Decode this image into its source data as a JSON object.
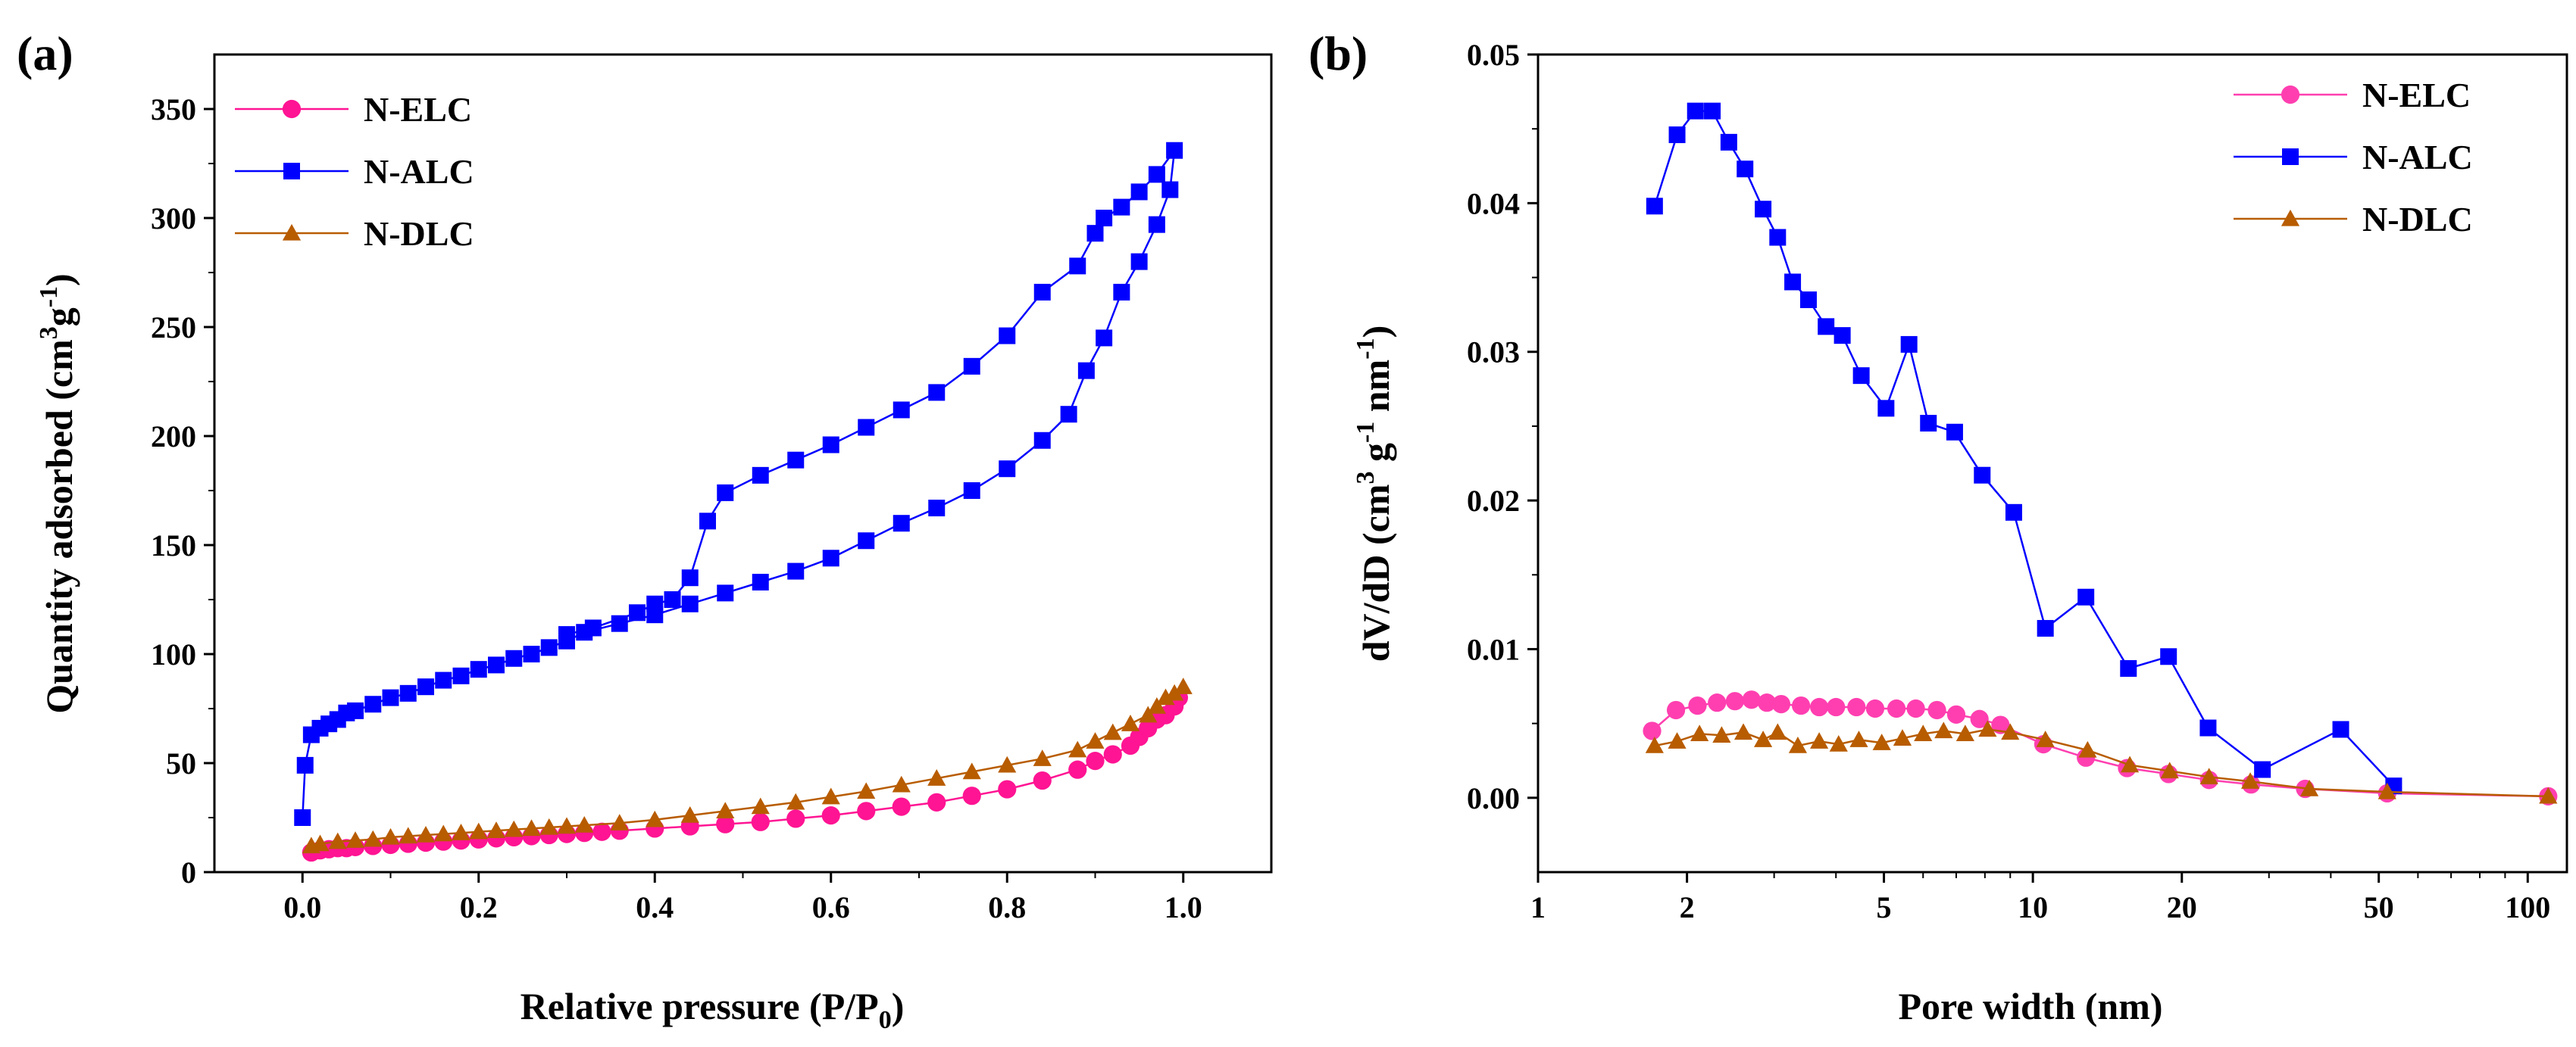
{
  "chart_data": [
    {
      "type": "line",
      "panel_label": "(a)",
      "xlabel": "Relative pressure (P/P",
      "xlabel_sub": "0",
      "xlabel_end": ")",
      "ylabel": "Quantity adsorbed (cm",
      "ylabel_sup1": "3",
      "ylabel_mid": "g",
      "ylabel_sup2": "-1",
      "ylabel_end": ")",
      "xlim": [
        -0.1,
        1.1
      ],
      "ylim": [
        0,
        375
      ],
      "xticks": [
        0.0,
        0.2,
        0.4,
        0.6,
        0.8,
        1.0
      ],
      "xtick_labels": [
        "0.0",
        "0.2",
        "0.4",
        "0.6",
        "0.8",
        "1.0"
      ],
      "yticks": [
        0,
        50,
        100,
        150,
        200,
        250,
        300,
        350
      ],
      "ytick_labels": [
        "0",
        "50",
        "100",
        "150",
        "200",
        "250",
        "300",
        "350"
      ],
      "legend_position": "top-left",
      "series": [
        {
          "name": "N-ELC",
          "color": "#ff1493",
          "marker": "circle",
          "x": [
            0.01,
            0.02,
            0.03,
            0.04,
            0.05,
            0.06,
            0.08,
            0.1,
            0.12,
            0.14,
            0.16,
            0.18,
            0.2,
            0.22,
            0.24,
            0.26,
            0.28,
            0.3,
            0.32,
            0.34,
            0.36,
            0.4,
            0.44,
            0.48,
            0.52,
            0.56,
            0.6,
            0.64,
            0.68,
            0.72,
            0.76,
            0.8,
            0.84,
            0.88,
            0.9,
            0.92,
            0.94,
            0.95,
            0.96,
            0.97,
            0.98,
            0.99,
            0.995
          ],
          "y": [
            9,
            10,
            10.5,
            11,
            11,
            11.5,
            12,
            12.5,
            13,
            13.5,
            14,
            14.5,
            15,
            15.5,
            16,
            16.5,
            17,
            17.5,
            18,
            18.5,
            19,
            20,
            21,
            22,
            23,
            24.5,
            26,
            28,
            30,
            32,
            35,
            38,
            42,
            47,
            51,
            54,
            58,
            62,
            66,
            70,
            72,
            76,
            80
          ]
        },
        {
          "name": "N-ALC",
          "color": "#0000ff",
          "marker": "square",
          "x": [
            0.0,
            0.003,
            0.01,
            0.02,
            0.03,
            0.04,
            0.05,
            0.06,
            0.08,
            0.1,
            0.12,
            0.14,
            0.16,
            0.18,
            0.2,
            0.22,
            0.24,
            0.26,
            0.28,
            0.3,
            0.32,
            0.36,
            0.4,
            0.44,
            0.48,
            0.52,
            0.56,
            0.6,
            0.64,
            0.68,
            0.72,
            0.76,
            0.8,
            0.84,
            0.87,
            0.89,
            0.91,
            0.93,
            0.95,
            0.97,
            0.985,
            0.99,
            0.97,
            0.95,
            0.93,
            0.91,
            0.9,
            0.88,
            0.84,
            0.8,
            0.76,
            0.72,
            0.68,
            0.64,
            0.6,
            0.56,
            0.52,
            0.48,
            0.46,
            0.44,
            0.42,
            0.4,
            0.38,
            0.33,
            0.3
          ],
          "y": [
            25,
            49,
            63,
            66,
            68,
            70,
            73,
            74,
            77,
            80,
            82,
            85,
            88,
            90,
            93,
            95,
            98,
            100,
            103,
            106,
            110,
            114,
            118,
            123,
            128,
            133,
            138,
            144,
            152,
            160,
            167,
            175,
            185,
            198,
            210,
            230,
            245,
            266,
            280,
            297,
            313,
            331,
            320,
            312,
            305,
            300,
            293,
            278,
            266,
            246,
            232,
            220,
            212,
            204,
            196,
            189,
            182,
            174,
            161,
            135,
            125,
            123,
            119,
            112,
            109
          ]
        },
        {
          "name": "N-DLC",
          "color": "#b85c00",
          "marker": "triangle",
          "x": [
            0.01,
            0.02,
            0.04,
            0.06,
            0.08,
            0.1,
            0.12,
            0.14,
            0.16,
            0.18,
            0.2,
            0.22,
            0.24,
            0.26,
            0.28,
            0.3,
            0.32,
            0.36,
            0.4,
            0.44,
            0.48,
            0.52,
            0.56,
            0.6,
            0.64,
            0.68,
            0.72,
            0.76,
            0.8,
            0.84,
            0.88,
            0.9,
            0.92,
            0.94,
            0.96,
            0.97,
            0.98,
            0.99,
            1.0
          ],
          "y": [
            12,
            13,
            14,
            14.5,
            15,
            16,
            16.5,
            17,
            17.5,
            18,
            18.5,
            19,
            19.5,
            20,
            20.5,
            21,
            21.5,
            22.5,
            24,
            26,
            28,
            30,
            32,
            34.5,
            37,
            40,
            43,
            46,
            49,
            52,
            56,
            60,
            64,
            68,
            72,
            76,
            80,
            82,
            85
          ]
        }
      ]
    },
    {
      "type": "line",
      "panel_label": "(b)",
      "xlabel": "Pore width (nm)",
      "ylabel": "dV/dD (cm",
      "ylabel_sup1": "3",
      "ylabel_mid": " g",
      "ylabel_sup2": "-1",
      "ylabel_mid2": " nm",
      "ylabel_sup3": "-1",
      "ylabel_end": ")",
      "xscale": "log",
      "xlim": [
        1,
        120
      ],
      "ylim": [
        -0.005,
        0.05
      ],
      "xticks": [
        1,
        2,
        5,
        10,
        20,
        50,
        100
      ],
      "xtick_labels": [
        "1",
        "2",
        "5",
        "10",
        "20",
        "50",
        "100"
      ],
      "yticks": [
        0.0,
        0.01,
        0.02,
        0.03,
        0.04,
        0.05
      ],
      "ytick_labels": [
        "0.00",
        "0.01",
        "0.02",
        "0.03",
        "0.04",
        "0.05"
      ],
      "legend_position": "top-right",
      "series": [
        {
          "name": "N-ELC",
          "color": "#ff3fb0",
          "marker": "circle",
          "x": [
            1.7,
            1.9,
            2.1,
            2.3,
            2.5,
            2.7,
            2.9,
            3.1,
            3.4,
            3.7,
            4.0,
            4.4,
            4.8,
            5.3,
            5.8,
            6.4,
            7.0,
            7.8,
            8.6,
            10.5,
            12.8,
            15.5,
            18.8,
            22.7,
            27.6,
            35.5,
            52.0,
            110.0
          ],
          "y": [
            0.0045,
            0.0059,
            0.0062,
            0.0064,
            0.0065,
            0.0066,
            0.0064,
            0.0063,
            0.0062,
            0.0061,
            0.0061,
            0.0061,
            0.006,
            0.006,
            0.006,
            0.0059,
            0.0056,
            0.0053,
            0.0049,
            0.0036,
            0.0027,
            0.002,
            0.0016,
            0.0012,
            0.0009,
            0.0006,
            0.0003,
            0.0001
          ]
        },
        {
          "name": "N-ALC",
          "color": "#0000ff",
          "marker": "square",
          "x": [
            1.72,
            1.91,
            2.08,
            2.25,
            2.43,
            2.62,
            2.85,
            3.05,
            3.27,
            3.52,
            3.82,
            4.12,
            4.5,
            5.05,
            5.62,
            6.15,
            6.95,
            7.9,
            9.15,
            10.6,
            12.8,
            15.6,
            18.8,
            22.6,
            29.1,
            41.9,
            53.6
          ],
          "y": [
            0.0398,
            0.0446,
            0.0462,
            0.0462,
            0.0441,
            0.0423,
            0.0396,
            0.0377,
            0.0347,
            0.0335,
            0.0317,
            0.0311,
            0.0284,
            0.0262,
            0.0305,
            0.0252,
            0.0246,
            0.0217,
            0.0192,
            0.0114,
            0.0135,
            0.0087,
            0.0095,
            0.0047,
            0.0019,
            0.0046,
            0.0008
          ]
        },
        {
          "name": "N-DLC",
          "color": "#b85c00",
          "marker": "triangle",
          "x": [
            1.72,
            1.91,
            2.12,
            2.35,
            2.6,
            2.85,
            3.05,
            3.35,
            3.7,
            4.05,
            4.45,
            4.95,
            5.45,
            6.0,
            6.6,
            7.3,
            8.1,
            9.0,
            10.6,
            12.9,
            15.7,
            18.9,
            22.7,
            27.5,
            36.2,
            52.0,
            110.0
          ],
          "y": [
            0.0035,
            0.0038,
            0.0043,
            0.0042,
            0.0044,
            0.0039,
            0.0044,
            0.0035,
            0.0038,
            0.0036,
            0.0039,
            0.0037,
            0.004,
            0.0043,
            0.0045,
            0.0043,
            0.0046,
            0.0044,
            0.0039,
            0.0032,
            0.0022,
            0.0018,
            0.0014,
            0.0011,
            0.0006,
            0.0004,
            0.0001
          ]
        }
      ]
    }
  ]
}
